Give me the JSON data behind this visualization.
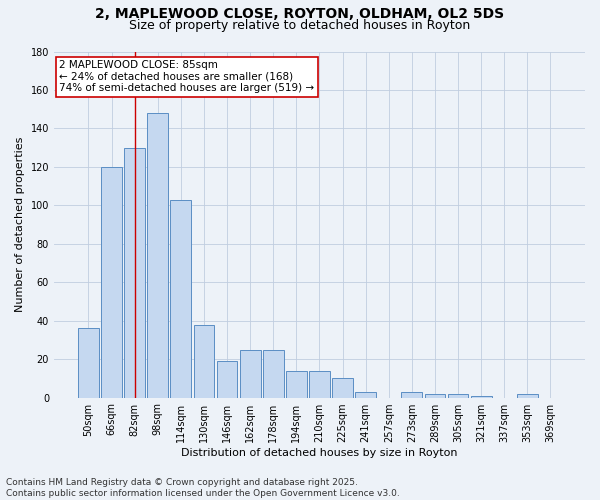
{
  "title_line1": "2, MAPLEWOOD CLOSE, ROYTON, OLDHAM, OL2 5DS",
  "title_line2": "Size of property relative to detached houses in Royton",
  "xlabel": "Distribution of detached houses by size in Royton",
  "ylabel": "Number of detached properties",
  "categories": [
    "50sqm",
    "66sqm",
    "82sqm",
    "98sqm",
    "114sqm",
    "130sqm",
    "146sqm",
    "162sqm",
    "178sqm",
    "194sqm",
    "210sqm",
    "225sqm",
    "241sqm",
    "257sqm",
    "273sqm",
    "289sqm",
    "305sqm",
    "321sqm",
    "337sqm",
    "353sqm",
    "369sqm"
  ],
  "values": [
    36,
    120,
    130,
    148,
    103,
    38,
    19,
    25,
    25,
    14,
    14,
    10,
    3,
    0,
    3,
    2,
    2,
    1,
    0,
    2,
    0
  ],
  "bar_color": "#c5d8f0",
  "bar_edge_color": "#5b8ec4",
  "vline_x": 2.0,
  "annotation_text": "2 MAPLEWOOD CLOSE: 85sqm\n← 24% of detached houses are smaller (168)\n74% of semi-detached houses are larger (519) →",
  "annotation_box_color": "#ffffff",
  "annotation_border_color": "#cc0000",
  "vline_color": "#cc0000",
  "background_color": "#edf2f8",
  "ylim": [
    0,
    180
  ],
  "yticks": [
    0,
    20,
    40,
    60,
    80,
    100,
    120,
    140,
    160,
    180
  ],
  "footnote": "Contains HM Land Registry data © Crown copyright and database right 2025.\nContains public sector information licensed under the Open Government Licence v3.0.",
  "title_fontsize": 10,
  "subtitle_fontsize": 9,
  "axis_label_fontsize": 8,
  "tick_fontsize": 7,
  "annotation_fontsize": 7.5,
  "footnote_fontsize": 6.5
}
